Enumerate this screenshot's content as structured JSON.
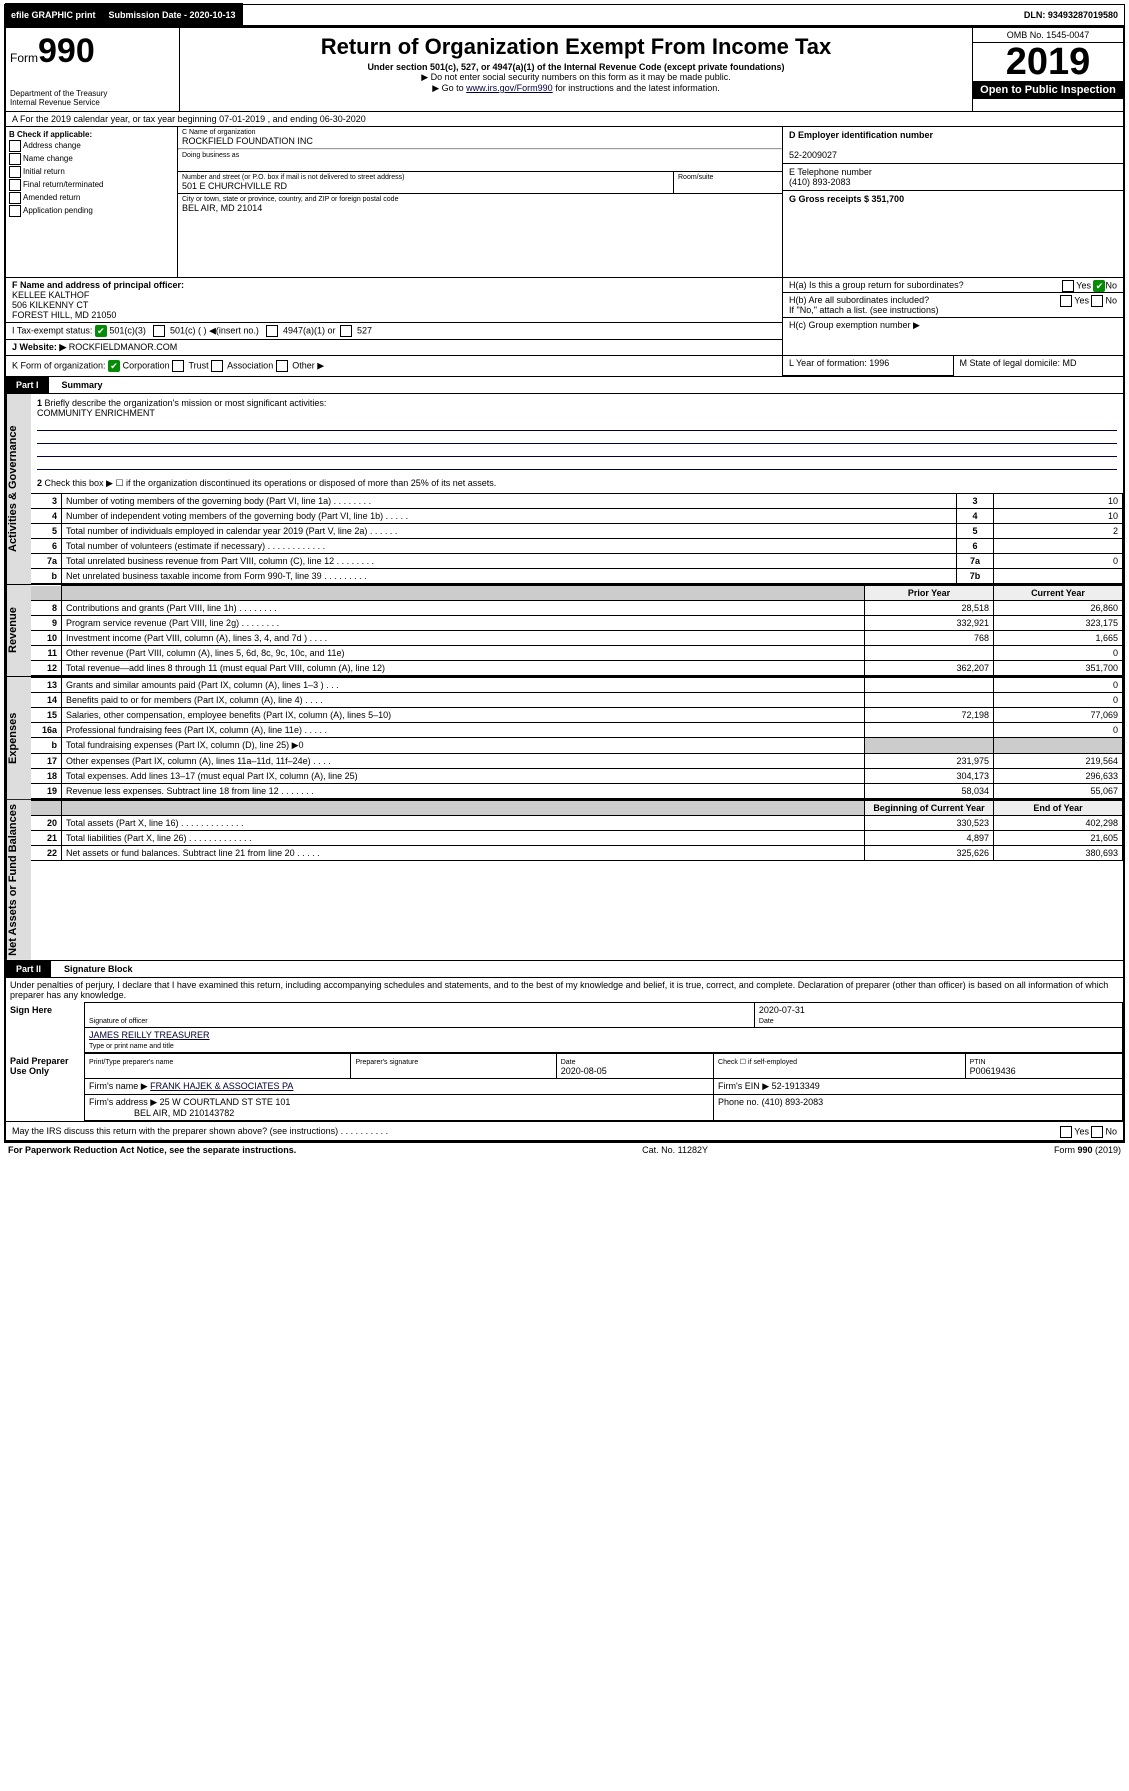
{
  "topbar": {
    "efile": "efile GRAPHIC print",
    "submission_label": "Submission Date - 2020-10-13",
    "dln": "DLN: 93493287019580"
  },
  "header": {
    "form_prefix": "Form",
    "form_number": "990",
    "dept": "Department of the Treasury",
    "irs": "Internal Revenue Service",
    "title": "Return of Organization Exempt From Income Tax",
    "subtitle": "Under section 501(c), 527, or 4947(a)(1) of the Internal Revenue Code (except private foundations)",
    "note1": "▶ Do not enter social security numbers on this form as it may be made public.",
    "note2_pre": "▶ Go to ",
    "note2_link": "www.irs.gov/Form990",
    "note2_post": " for instructions and the latest information.",
    "omb": "OMB No. 1545-0047",
    "year": "2019",
    "open": "Open to Public Inspection"
  },
  "row_a": "A For the 2019 calendar year, or tax year beginning 07-01-2019    , and ending 06-30-2020",
  "col_b": {
    "label": "B Check if applicable:",
    "items": [
      "Address change",
      "Name change",
      "Initial return",
      "Final return/terminated",
      "Amended return",
      "Application pending"
    ]
  },
  "col_c": {
    "name_label": "C Name of organization",
    "name": "ROCKFIELD FOUNDATION INC",
    "dba_label": "Doing business as",
    "street_label": "Number and street (or P.O. box if mail is not delivered to street address)",
    "street": "501 E CHURCHVILLE RD",
    "room_label": "Room/suite",
    "city_label": "City or town, state or province, country, and ZIP or foreign postal code",
    "city": "BEL AIR, MD  21014"
  },
  "col_d": {
    "d_label": "D Employer identification number",
    "ein": "52-2009027",
    "e_label": "E Telephone number",
    "phone": "(410) 893-2083",
    "g_label": "G Gross receipts $ 351,700"
  },
  "row_f": {
    "f_label": "F  Name and address of principal officer:",
    "name": "KELLEE KALTHOF",
    "addr1": "506 KILKENNY CT",
    "addr2": "FOREST HILL, MD  21050"
  },
  "row_h": {
    "ha": "H(a)  Is this a group return for subordinates?",
    "hb": "H(b)  Are all subordinates included?",
    "hb_note": "If \"No,\" attach a list. (see instructions)",
    "hc": "H(c)  Group exemption number ▶",
    "yes": "Yes",
    "no": "No"
  },
  "row_i": {
    "label": "I    Tax-exempt status:",
    "opt1": "501(c)(3)",
    "opt2": "501(c) (  ) ◀(insert no.)",
    "opt3": "4947(a)(1) or",
    "opt4": "527"
  },
  "row_j": {
    "label": "J    Website: ▶",
    "val": "ROCKFIELDMANOR.COM"
  },
  "row_k": {
    "label": "K Form of organization:",
    "opts": [
      "Corporation",
      "Trust",
      "Association",
      "Other ▶"
    ]
  },
  "row_l": {
    "label": "L Year of formation: 1996"
  },
  "row_m": {
    "label": "M State of legal domicile: MD"
  },
  "part1": {
    "num": "Part I",
    "title": "Summary",
    "vert_gov": "Activities & Governance",
    "vert_rev": "Revenue",
    "vert_exp": "Expenses",
    "vert_net": "Net Assets or Fund Balances",
    "line1": "Briefly describe the organization's mission or most significant activities:",
    "mission": "COMMUNITY ENRICHMENT",
    "line2": "Check this box ▶ ☐  if the organization discontinued its operations or disposed of more than 25% of its net assets.",
    "lines_gov": [
      {
        "n": "3",
        "d": "Number of voting members of the governing body (Part VI, line 1a)   .    .    .    .    .    .    .    .",
        "b": "3",
        "v": "10"
      },
      {
        "n": "4",
        "d": "Number of independent voting members of the governing body (Part VI, line 1b)   .    .    .    .    .",
        "b": "4",
        "v": "10"
      },
      {
        "n": "5",
        "d": "Total number of individuals employed in calendar year 2019 (Part V, line 2a)   .    .    .    .    .    .",
        "b": "5",
        "v": "2"
      },
      {
        "n": "6",
        "d": "Total number of volunteers (estimate if necessary)   .    .    .    .    .    .    .    .    .    .    .    .",
        "b": "6",
        "v": ""
      },
      {
        "n": "7a",
        "d": "Total unrelated business revenue from Part VIII, column (C), line 12   .    .    .    .    .    .    .    .",
        "b": "7a",
        "v": "0"
      },
      {
        "n": "b",
        "d": "Net unrelated business taxable income from Form 990-T, line 39   .    .    .    .    .    .    .    .    .",
        "b": "7b",
        "v": ""
      }
    ],
    "colhead_prior": "Prior Year",
    "colhead_curr": "Current Year",
    "lines_rev": [
      {
        "n": "8",
        "d": "Contributions and grants (Part VIII, line 1h)   .    .    .    .    .    .    .    .",
        "p": "28,518",
        "c": "26,860"
      },
      {
        "n": "9",
        "d": "Program service revenue (Part VIII, line 2g)   .    .    .    .    .    .    .    .",
        "p": "332,921",
        "c": "323,175"
      },
      {
        "n": "10",
        "d": "Investment income (Part VIII, column (A), lines 3, 4, and 7d )   .    .    .    .",
        "p": "768",
        "c": "1,665"
      },
      {
        "n": "11",
        "d": "Other revenue (Part VIII, column (A), lines 5, 6d, 8c, 9c, 10c, and 11e)",
        "p": "",
        "c": "0"
      },
      {
        "n": "12",
        "d": "Total revenue—add lines 8 through 11 (must equal Part VIII, column (A), line 12)",
        "p": "362,207",
        "c": "351,700"
      }
    ],
    "lines_exp": [
      {
        "n": "13",
        "d": "Grants and similar amounts paid (Part IX, column (A), lines 1–3 )   .    .    .",
        "p": "",
        "c": "0"
      },
      {
        "n": "14",
        "d": "Benefits paid to or for members (Part IX, column (A), line 4)   .    .    .    .",
        "p": "",
        "c": "0"
      },
      {
        "n": "15",
        "d": "Salaries, other compensation, employee benefits (Part IX, column (A), lines 5–10)",
        "p": "72,198",
        "c": "77,069"
      },
      {
        "n": "16a",
        "d": "Professional fundraising fees (Part IX, column (A), line 11e)   .    .    .    .    .",
        "p": "",
        "c": "0"
      },
      {
        "n": "b",
        "d": "Total fundraising expenses (Part IX, column (D), line 25) ▶0",
        "p": "GRAY",
        "c": "GRAY"
      },
      {
        "n": "17",
        "d": "Other expenses (Part IX, column (A), lines 11a–11d, 11f–24e)   .    .    .    .",
        "p": "231,975",
        "c": "219,564"
      },
      {
        "n": "18",
        "d": "Total expenses. Add lines 13–17 (must equal Part IX, column (A), line 25)",
        "p": "304,173",
        "c": "296,633"
      },
      {
        "n": "19",
        "d": "Revenue less expenses. Subtract line 18 from line 12   .    .    .    .    .    .    .",
        "p": "58,034",
        "c": "55,067"
      }
    ],
    "colhead_beg": "Beginning of Current Year",
    "colhead_end": "End of Year",
    "lines_net": [
      {
        "n": "20",
        "d": "Total assets (Part X, line 16)   .    .    .    .    .    .    .    .    .    .    .    .    .",
        "p": "330,523",
        "c": "402,298"
      },
      {
        "n": "21",
        "d": "Total liabilities (Part X, line 26)   .    .    .    .    .    .    .    .    .    .    .    .    .",
        "p": "4,897",
        "c": "21,605"
      },
      {
        "n": "22",
        "d": "Net assets or fund balances. Subtract line 21 from line 20   .    .    .    .    .",
        "p": "325,626",
        "c": "380,693"
      }
    ]
  },
  "part2": {
    "num": "Part II",
    "title": "Signature Block",
    "perjury": "Under penalties of perjury, I declare that I have examined this return, including accompanying schedules and statements, and to the best of my knowledge and belief, it is true, correct, and complete. Declaration of preparer (other than officer) is based on all information of which preparer has any knowledge.",
    "sign_here": "Sign Here",
    "sig_officer": "Signature of officer",
    "sig_date": "2020-07-31",
    "date_label": "Date",
    "name_title": "JAMES REILLY TREASURER",
    "name_title_label": "Type or print name and title",
    "paid": "Paid Preparer Use Only",
    "prep_name_label": "Print/Type preparer's name",
    "prep_sig_label": "Preparer's signature",
    "prep_date_label": "Date",
    "prep_date": "2020-08-05",
    "check_label": "Check ☐ if self-employed",
    "ptin_label": "PTIN",
    "ptin": "P00619436",
    "firm_name_label": "Firm's name    ▶",
    "firm_name": "FRANK HAJEK & ASSOCIATES PA",
    "firm_ein_label": "Firm's EIN ▶",
    "firm_ein": "52-1913349",
    "firm_addr_label": "Firm's address ▶",
    "firm_addr1": "25 W COURTLAND ST STE 101",
    "firm_addr2": "BEL AIR, MD  210143782",
    "firm_phone_label": "Phone no.",
    "firm_phone": "(410) 893-2083",
    "discuss": "May the IRS discuss this return with the preparer shown above? (see instructions)    .    .    .    .    .    .    .    .    .    .",
    "yes": "Yes",
    "no": "No"
  },
  "footer": {
    "left": "For Paperwork Reduction Act Notice, see the separate instructions.",
    "mid": "Cat. No. 11282Y",
    "right": "Form 990 (2019)"
  }
}
